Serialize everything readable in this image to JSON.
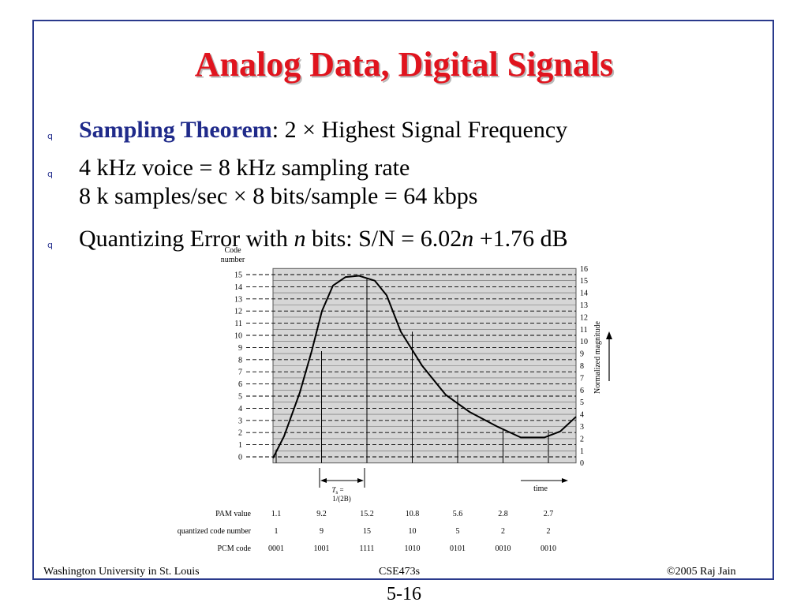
{
  "title": "Analog Data, Digital Signals",
  "bullets": [
    {
      "label": "Sampling Theorem",
      "text": ": 2 × Highest Signal Frequency"
    },
    {
      "line1": "4 kHz voice = 8 kHz sampling rate",
      "line2": "8 k samples/sec × 8 bits/sample = 64 kbps"
    },
    {
      "pre": "Quantizing Error with ",
      "n1": "n",
      "mid": " bits: S/N = 6.02",
      "n2": "n",
      "post": " +1.76 dB"
    }
  ],
  "bullet_marker": "q",
  "figure": {
    "left_axis_title_1": "Code",
    "left_axis_title_2": "number",
    "right_axis_label": "Normalized magnitude",
    "code_levels": [
      0,
      1,
      2,
      3,
      4,
      5,
      6,
      7,
      8,
      9,
      10,
      11,
      12,
      13,
      14,
      15
    ],
    "magnitude_levels": [
      0,
      1,
      2,
      3,
      4,
      5,
      6,
      7,
      8,
      9,
      10,
      11,
      12,
      13,
      14,
      15,
      16
    ],
    "ts_label_1": "T",
    "ts_label_sub": "s",
    "ts_label_eq": " =",
    "ts_label_2": "1/(2B)",
    "time_label": "time",
    "row_labels": [
      "PAM value",
      "quantized code number",
      "PCM code"
    ],
    "samples": [
      {
        "pam": "1.1",
        "code": "1",
        "pcm": "0001"
      },
      {
        "pam": "9.2",
        "code": "9",
        "pcm": "1001"
      },
      {
        "pam": "15.2",
        "code": "15",
        "pcm": "1111"
      },
      {
        "pam": "10.8",
        "code": "10",
        "pcm": "1010"
      },
      {
        "pam": "5.6",
        "code": "5",
        "pcm": "0101"
      },
      {
        "pam": "2.8",
        "code": "2",
        "pcm": "0010"
      },
      {
        "pam": "2.7",
        "code": "2",
        "pcm": "0010"
      }
    ]
  },
  "footer": {
    "left": "Washington University in St. Louis",
    "center": "CSE473s",
    "right": "©2005 Raj Jain"
  },
  "page_number": "5-16",
  "colors": {
    "title": "#e0141e",
    "accent": "#1f2a8a",
    "frame": "#2a3a8c"
  }
}
